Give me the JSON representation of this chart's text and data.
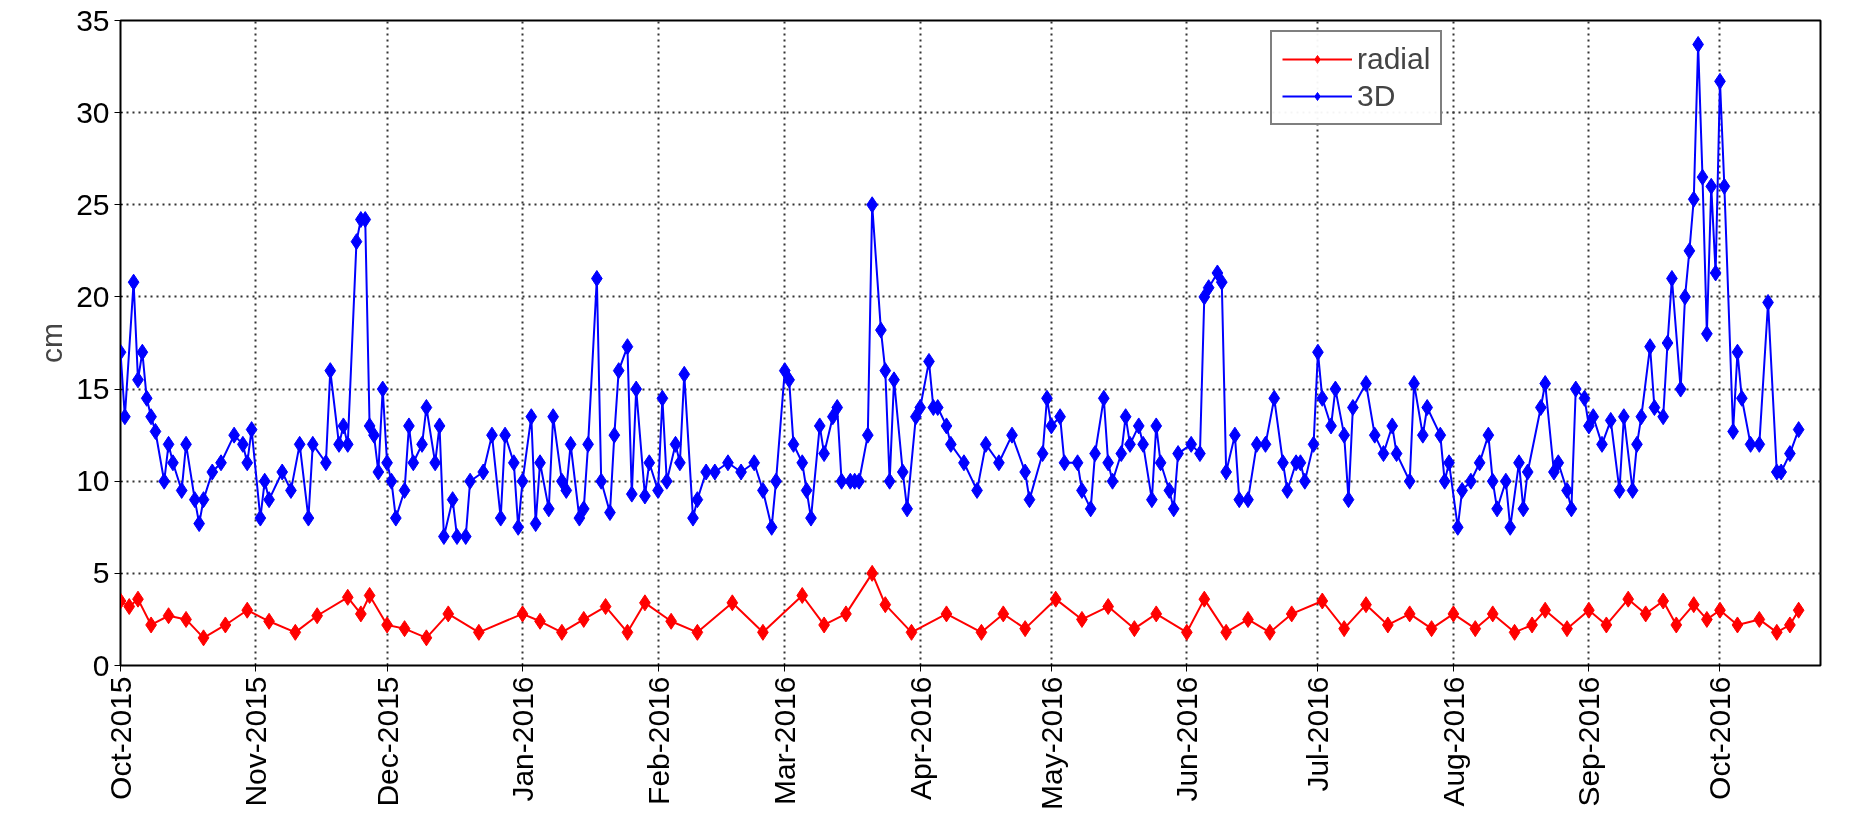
{
  "chart_data": {
    "type": "line",
    "ylabel": "cm",
    "xlim": [
      "2015-10-01",
      "2016-10-24"
    ],
    "ylim": [
      0,
      35
    ],
    "yticks": [
      0,
      5,
      10,
      15,
      20,
      25,
      30,
      35
    ],
    "xticks": [
      {
        "value": "2015-10-01",
        "label": "Oct-2015"
      },
      {
        "value": "2015-11-01",
        "label": "Nov-2015"
      },
      {
        "value": "2015-12-01",
        "label": "Dec-2015"
      },
      {
        "value": "2016-01-01",
        "label": "Jan-2016"
      },
      {
        "value": "2016-02-01",
        "label": "Feb-2016"
      },
      {
        "value": "2016-03-01",
        "label": "Mar-2016"
      },
      {
        "value": "2016-04-01",
        "label": "Apr-2016"
      },
      {
        "value": "2016-05-01",
        "label": "May-2016"
      },
      {
        "value": "2016-06-01",
        "label": "Jun-2016"
      },
      {
        "value": "2016-07-01",
        "label": "Jul-2016"
      },
      {
        "value": "2016-08-01",
        "label": "Aug-2016"
      },
      {
        "value": "2016-09-01",
        "label": "Sep-2016"
      },
      {
        "value": "2016-10-01",
        "label": "Oct-2016"
      }
    ],
    "grid": true,
    "legend": "top right",
    "marker": "diamond",
    "line_style": "solid",
    "series": [
      {
        "name": "radial",
        "color": "#ff0000",
        "x": [
          "2015-10-01",
          "2015-10-03",
          "2015-10-05",
          "2015-10-08",
          "2015-10-12",
          "2015-10-16",
          "2015-10-20",
          "2015-10-25",
          "2015-10-30",
          "2015-11-04",
          "2015-11-10",
          "2015-11-15",
          "2015-11-22",
          "2015-11-25",
          "2015-11-27",
          "2015-12-01",
          "2015-12-05",
          "2015-12-10",
          "2015-12-15",
          "2015-12-22",
          "2016-01-01",
          "2016-01-05",
          "2016-01-10",
          "2016-01-15",
          "2016-01-20",
          "2016-01-25",
          "2016-01-29",
          "2016-02-04",
          "2016-02-10",
          "2016-02-18",
          "2016-02-25",
          "2016-03-05",
          "2016-03-10",
          "2016-03-15",
          "2016-03-21",
          "2016-03-24",
          "2016-03-30",
          "2016-04-07",
          "2016-04-15",
          "2016-04-20",
          "2016-04-25",
          "2016-05-02",
          "2016-05-08",
          "2016-05-14",
          "2016-05-20",
          "2016-05-25",
          "2016-06-01",
          "2016-06-05",
          "2016-06-10",
          "2016-06-15",
          "2016-06-20",
          "2016-06-25",
          "2016-07-02",
          "2016-07-07",
          "2016-07-12",
          "2016-07-17",
          "2016-07-22",
          "2016-07-27",
          "2016-08-01",
          "2016-08-06",
          "2016-08-10",
          "2016-08-15",
          "2016-08-19",
          "2016-08-22",
          "2016-08-27",
          "2016-09-01",
          "2016-09-05",
          "2016-09-10",
          "2016-09-14",
          "2016-09-18",
          "2016-09-21",
          "2016-09-25",
          "2016-09-28",
          "2016-10-01",
          "2016-10-05",
          "2016-10-10",
          "2016-10-14",
          "2016-10-17",
          "2016-10-19"
        ],
        "values": [
          3.5,
          3.2,
          3.6,
          2.2,
          2.7,
          2.5,
          1.5,
          2.2,
          3,
          2.4,
          1.8,
          2.7,
          3.7,
          2.8,
          3.8,
          2.2,
          2,
          1.5,
          2.8,
          1.8,
          2.8,
          2.4,
          1.8,
          2.5,
          3.2,
          1.8,
          3.4,
          2.4,
          1.8,
          3.4,
          1.8,
          3.8,
          2.2,
          2.8,
          5,
          3.3,
          1.8,
          2.8,
          1.8,
          2.8,
          2,
          3.6,
          2.5,
          3.2,
          2,
          2.8,
          1.8,
          3.6,
          1.8,
          2.5,
          1.8,
          2.8,
          3.5,
          2,
          3.3,
          2.2,
          2.8,
          2,
          2.8,
          2,
          2.8,
          1.8,
          2.2,
          3,
          2,
          3,
          2.2,
          3.6,
          2.8,
          3.5,
          2.2,
          3.3,
          2.5,
          3,
          2.2,
          2.5,
          1.8,
          2.2,
          3
        ]
      },
      {
        "name": "3D",
        "color": "#0000ff",
        "x": [
          "2015-10-01",
          "2015-10-02",
          "2015-10-04",
          "2015-10-05",
          "2015-10-06",
          "2015-10-07",
          "2015-10-08",
          "2015-10-09",
          "2015-10-11",
          "2015-10-12",
          "2015-10-13",
          "2015-10-15",
          "2015-10-16",
          "2015-10-18",
          "2015-10-19",
          "2015-10-20",
          "2015-10-22",
          "2015-10-24",
          "2015-10-27",
          "2015-10-29",
          "2015-10-30",
          "2015-10-31",
          "2015-11-02",
          "2015-11-03",
          "2015-11-04",
          "2015-11-07",
          "2015-11-09",
          "2015-11-11",
          "2015-11-13",
          "2015-11-14",
          "2015-11-17",
          "2015-11-18",
          "2015-11-20",
          "2015-11-21",
          "2015-11-22",
          "2015-11-24",
          "2015-11-25",
          "2015-11-26",
          "2015-11-27",
          "2015-11-28",
          "2015-11-29",
          "2015-11-30",
          "2015-12-01",
          "2015-12-02",
          "2015-12-03",
          "2015-12-05",
          "2015-12-06",
          "2015-12-07",
          "2015-12-09",
          "2015-12-10",
          "2015-12-12",
          "2015-12-13",
          "2015-12-14",
          "2015-12-16",
          "2015-12-17",
          "2015-12-19",
          "2015-12-20",
          "2015-12-23",
          "2015-12-25",
          "2015-12-27",
          "2015-12-28",
          "2015-12-30",
          "2015-12-31",
          "2016-01-01",
          "2016-01-03",
          "2016-01-04",
          "2016-01-05",
          "2016-01-07",
          "2016-01-08",
          "2016-01-10",
          "2016-01-11",
          "2016-01-12",
          "2016-01-14",
          "2016-01-15",
          "2016-01-16",
          "2016-01-18",
          "2016-01-19",
          "2016-01-21",
          "2016-01-22",
          "2016-01-23",
          "2016-01-25",
          "2016-01-26",
          "2016-01-27",
          "2016-01-29",
          "2016-01-30",
          "2016-02-01",
          "2016-02-02",
          "2016-02-03",
          "2016-02-05",
          "2016-02-06",
          "2016-02-07",
          "2016-02-09",
          "2016-02-10",
          "2016-02-12",
          "2016-02-14",
          "2016-02-17",
          "2016-02-20",
          "2016-02-23",
          "2016-02-25",
          "2016-02-27",
          "2016-02-28",
          "2016-03-01",
          "2016-03-02",
          "2016-03-03",
          "2016-03-05",
          "2016-03-06",
          "2016-03-07",
          "2016-03-09",
          "2016-03-10",
          "2016-03-12",
          "2016-03-13",
          "2016-03-14",
          "2016-03-16",
          "2016-03-17",
          "2016-03-18",
          "2016-03-20",
          "2016-03-21",
          "2016-03-23",
          "2016-03-24",
          "2016-03-25",
          "2016-03-26",
          "2016-03-28",
          "2016-03-29",
          "2016-03-31",
          "2016-04-01",
          "2016-04-03",
          "2016-04-04",
          "2016-04-05",
          "2016-04-07",
          "2016-04-08",
          "2016-04-11",
          "2016-04-14",
          "2016-04-16",
          "2016-04-19",
          "2016-04-22",
          "2016-04-25",
          "2016-04-26",
          "2016-04-29",
          "2016-04-30",
          "2016-05-01",
          "2016-05-03",
          "2016-05-04",
          "2016-05-07",
          "2016-05-08",
          "2016-05-10",
          "2016-05-11",
          "2016-05-13",
          "2016-05-14",
          "2016-05-15",
          "2016-05-17",
          "2016-05-18",
          "2016-05-19",
          "2016-05-21",
          "2016-05-22",
          "2016-05-24",
          "2016-05-25",
          "2016-05-26",
          "2016-05-28",
          "2016-05-29",
          "2016-05-30",
          "2016-06-02",
          "2016-06-04",
          "2016-06-05",
          "2016-06-06",
          "2016-06-08",
          "2016-06-09",
          "2016-06-10",
          "2016-06-12",
          "2016-06-13",
          "2016-06-15",
          "2016-06-17",
          "2016-06-19",
          "2016-06-21",
          "2016-06-23",
          "2016-06-24",
          "2016-06-26",
          "2016-06-27",
          "2016-06-28",
          "2016-06-30",
          "2016-07-01",
          "2016-07-02",
          "2016-07-04",
          "2016-07-05",
          "2016-07-07",
          "2016-07-08",
          "2016-07-09",
          "2016-07-12",
          "2016-07-14",
          "2016-07-16",
          "2016-07-18",
          "2016-07-19",
          "2016-07-22",
          "2016-07-23",
          "2016-07-25",
          "2016-07-26",
          "2016-07-29",
          "2016-07-30",
          "2016-07-31",
          "2016-08-02",
          "2016-08-03",
          "2016-08-05",
          "2016-08-07",
          "2016-08-09",
          "2016-08-10",
          "2016-08-11",
          "2016-08-13",
          "2016-08-14",
          "2016-08-16",
          "2016-08-17",
          "2016-08-18",
          "2016-08-21",
          "2016-08-22",
          "2016-08-24",
          "2016-08-25",
          "2016-08-27",
          "2016-08-28",
          "2016-08-29",
          "2016-08-31",
          "2016-09-01",
          "2016-09-02",
          "2016-09-04",
          "2016-09-06",
          "2016-09-08",
          "2016-09-09",
          "2016-09-11",
          "2016-09-12",
          "2016-09-13",
          "2016-09-15",
          "2016-09-16",
          "2016-09-18",
          "2016-09-19",
          "2016-09-20",
          "2016-09-22",
          "2016-09-23",
          "2016-09-24",
          "2016-09-25",
          "2016-09-26",
          "2016-09-27",
          "2016-09-28",
          "2016-09-29",
          "2016-09-30",
          "2016-10-01",
          "2016-10-02",
          "2016-10-04",
          "2016-10-05",
          "2016-10-06",
          "2016-10-08",
          "2016-10-10",
          "2016-10-12",
          "2016-10-14",
          "2016-10-15",
          "2016-10-17",
          "2016-10-19"
        ],
        "values": [
          17,
          13.5,
          20.8,
          15.5,
          17,
          14.5,
          13.5,
          12.7,
          10,
          12,
          11,
          9.5,
          12,
          9,
          7.7,
          9,
          10.5,
          11,
          12.5,
          12,
          11,
          12.8,
          8,
          10,
          9,
          10.5,
          9.5,
          12,
          8,
          12,
          11,
          16,
          12,
          13,
          12,
          23,
          24.2,
          24.2,
          13,
          12.5,
          10.5,
          15,
          11,
          10,
          8,
          9.5,
          13,
          11,
          12,
          14,
          11,
          13,
          7,
          9,
          7,
          7,
          10,
          10.5,
          12.5,
          8,
          12.5,
          11,
          7.5,
          10,
          13.5,
          7.7,
          11,
          8.5,
          13.5,
          10,
          9.5,
          12,
          8,
          8.5,
          12,
          21,
          10,
          8.3,
          12.5,
          16,
          17.3,
          9.3,
          15,
          9.2,
          11,
          9.5,
          14.5,
          10,
          12,
          11,
          15.8,
          8,
          9,
          10.5,
          10.5,
          11,
          10.5,
          11,
          9.5,
          7.5,
          10,
          16,
          15.5,
          12,
          11,
          9.5,
          8,
          13,
          11.5,
          13.5,
          14,
          10,
          10,
          10,
          10,
          12.5,
          25,
          18.2,
          16,
          10,
          15.5,
          10.5,
          8.5,
          13.5,
          14,
          16.5,
          14,
          14,
          13,
          12,
          11,
          9.5,
          12,
          11,
          12.5,
          10.5,
          9,
          11.5,
          14.5,
          13,
          13.5,
          11,
          11,
          9.5,
          8.5,
          11.5,
          14.5,
          11,
          10,
          11.5,
          13.5,
          12,
          13,
          12,
          9,
          13,
          11,
          9.5,
          8.5,
          11.5,
          12,
          11.5,
          20,
          20.5,
          21.3,
          20.8,
          10.5,
          12.5,
          9,
          9,
          12,
          12,
          14.5,
          11,
          9.5,
          11,
          11,
          10,
          12,
          17,
          14.5,
          13,
          15,
          12.5,
          9,
          14,
          15.3,
          12.5,
          11.5,
          13,
          11.5,
          10,
          15.3,
          12.5,
          14,
          12.5,
          10,
          11,
          7.5,
          9.5,
          10,
          11,
          12.5,
          10,
          8.5,
          10,
          7.5,
          11,
          8.5,
          10.5,
          14,
          15.3,
          10.5,
          11,
          9.5,
          8.5,
          15,
          14.5,
          13,
          13.5,
          12,
          13.3,
          9.5,
          13.5,
          9.5,
          12,
          13.5,
          17.3,
          14,
          13.5,
          17.5,
          21,
          15,
          20,
          22.5,
          25.3,
          33.7,
          26.5,
          18,
          26,
          21.3,
          31.7,
          26,
          12.7,
          17,
          14.5,
          12,
          12,
          19.7,
          10.5,
          10.5,
          11.5,
          12.8
        ]
      }
    ]
  }
}
